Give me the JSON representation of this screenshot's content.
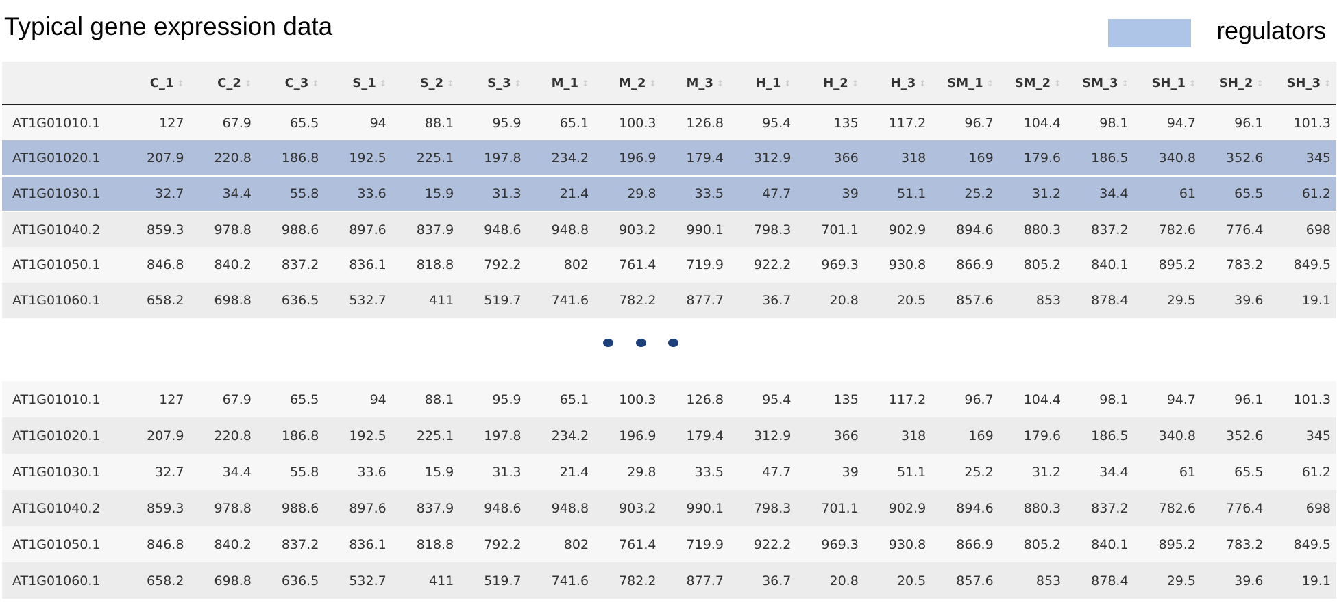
{
  "title": "Typical gene expression data",
  "legend": {
    "label": "regulators",
    "color": "#afc5e7"
  },
  "columns": [
    "C_1",
    "C_2",
    "C_3",
    "S_1",
    "S_2",
    "S_3",
    "M_1",
    "M_2",
    "M_3",
    "H_1",
    "H_2",
    "H_3",
    "SM_1",
    "SM_2",
    "SM_3",
    "SH_1",
    "SH_2",
    "SH_3"
  ],
  "rows": [
    {
      "id": "AT1G01010.1",
      "values": [
        "127",
        "67.9",
        "65.5",
        "94",
        "88.1",
        "95.9",
        "65.1",
        "100.3",
        "126.8",
        "95.4",
        "135",
        "117.2",
        "96.7",
        "104.4",
        "98.1",
        "94.7",
        "96.1",
        "101.3"
      ]
    },
    {
      "id": "AT1G01020.1",
      "values": [
        "207.9",
        "220.8",
        "186.8",
        "192.5",
        "225.1",
        "197.8",
        "234.2",
        "196.9",
        "179.4",
        "312.9",
        "366",
        "318",
        "169",
        "179.6",
        "186.5",
        "340.8",
        "352.6",
        "345"
      ]
    },
    {
      "id": "AT1G01030.1",
      "values": [
        "32.7",
        "34.4",
        "55.8",
        "33.6",
        "15.9",
        "31.3",
        "21.4",
        "29.8",
        "33.5",
        "47.7",
        "39",
        "51.1",
        "25.2",
        "31.2",
        "34.4",
        "61",
        "65.5",
        "61.2"
      ]
    },
    {
      "id": "AT1G01040.2",
      "values": [
        "859.3",
        "978.8",
        "988.6",
        "897.6",
        "837.9",
        "948.6",
        "948.8",
        "903.2",
        "990.1",
        "798.3",
        "701.1",
        "902.9",
        "894.6",
        "880.3",
        "837.2",
        "782.6",
        "776.4",
        "698"
      ]
    },
    {
      "id": "AT1G01050.1",
      "values": [
        "846.8",
        "840.2",
        "837.2",
        "836.1",
        "818.8",
        "792.2",
        "802",
        "761.4",
        "719.9",
        "922.2",
        "969.3",
        "930.8",
        "866.9",
        "805.2",
        "840.1",
        "895.2",
        "783.2",
        "849.5"
      ]
    },
    {
      "id": "AT1G01060.1",
      "values": [
        "658.2",
        "698.8",
        "636.5",
        "532.7",
        "411",
        "519.7",
        "741.6",
        "782.2",
        "877.7",
        "36.7",
        "20.8",
        "20.5",
        "857.6",
        "853",
        "878.4",
        "29.5",
        "39.6",
        "19.1"
      ]
    }
  ],
  "highlighted_rows": [
    1,
    2
  ]
}
